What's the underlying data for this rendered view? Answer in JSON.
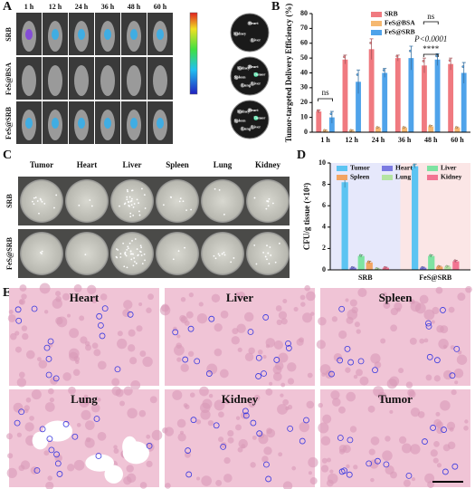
{
  "panels": {
    "letters": [
      "A",
      "B",
      "C",
      "D",
      "E"
    ],
    "a": {
      "times": [
        "1 h",
        "12 h",
        "24 h",
        "36 h",
        "48 h",
        "60 h"
      ],
      "rows": [
        "SRB",
        "FeS@BSA",
        "FeS@SRB"
      ],
      "plates": [
        [
          "Heart",
          "Liver",
          "Kidney"
        ],
        [
          "Heart",
          "Tumor",
          "Liver",
          "Lung",
          "Spleen",
          "Kidney"
        ],
        [
          "Heart",
          "Tumor",
          "Liver",
          "Lung",
          "Spleen",
          "Kidney"
        ]
      ]
    },
    "c": {
      "organs": [
        "Tumor",
        "Heart",
        "Liver",
        "Spleen",
        "Lung",
        "Kidney"
      ],
      "rows": [
        "SRB",
        "FeS@SRB"
      ]
    },
    "e": {
      "organs": [
        "Heart",
        "Liver",
        "Spleen",
        "Lung",
        "Kidney",
        "Tumor"
      ]
    }
  },
  "chart_data": [
    {
      "type": "bar",
      "y_label": "Tumor-targeted Delivery Efficiency (%)",
      "categories": [
        "1 h",
        "12 h",
        "24 h",
        "36 h",
        "48 h",
        "60 h"
      ],
      "series": [
        {
          "name": "SRB",
          "color": "#f07a80",
          "values": [
            14,
            49,
            56,
            50,
            45,
            46
          ],
          "errors": [
            1,
            3,
            7,
            2,
            5,
            4
          ]
        },
        {
          "name": "FeS@BSA",
          "color": "#f5b870",
          "values": [
            1,
            1,
            3,
            3,
            4,
            3
          ],
          "errors": [
            0.5,
            0.5,
            0.5,
            0.5,
            0.5,
            0.5
          ]
        },
        {
          "name": "FeS@SRB",
          "color": "#4fa3ea",
          "values": [
            10,
            34,
            40,
            50,
            49,
            40
          ],
          "errors": [
            4,
            8,
            3,
            8,
            4,
            7
          ]
        }
      ],
      "ylim": [
        0,
        80
      ],
      "yticks": [
        0,
        10,
        20,
        30,
        40,
        50,
        60,
        70,
        80
      ],
      "annotations": [
        "ns",
        "ns",
        "P<0.0001",
        "****"
      ]
    },
    {
      "type": "bar",
      "y_label": "CFU/g tissue (×10²)",
      "categories": [
        "SRB",
        "FeS@SRB"
      ],
      "series": [
        {
          "name": "Tumor",
          "color": "#5cc4f2",
          "values": [
            8.2,
            9.7
          ],
          "errors": [
            0.5,
            0.2
          ]
        },
        {
          "name": "Heart",
          "color": "#7b7be2",
          "values": [
            0.2,
            0.2
          ],
          "errors": [
            0.05,
            0.05
          ]
        },
        {
          "name": "Liver",
          "color": "#7ee3a2",
          "values": [
            1.3,
            1.3
          ],
          "errors": [
            0.1,
            0.1
          ]
        },
        {
          "name": "Spleen",
          "color": "#f2a462",
          "values": [
            0.7,
            0.3
          ],
          "errors": [
            0.1,
            0.05
          ]
        },
        {
          "name": "Lung",
          "color": "#b4e4a2",
          "values": [
            0.1,
            0.3
          ],
          "errors": [
            0.05,
            0.05
          ]
        },
        {
          "name": "Kidney",
          "color": "#f27492",
          "values": [
            0.2,
            0.8
          ],
          "errors": [
            0.05,
            0.1
          ]
        }
      ],
      "ylim": [
        0,
        10
      ],
      "yticks": [
        0,
        2,
        4,
        6,
        8,
        10
      ]
    }
  ]
}
